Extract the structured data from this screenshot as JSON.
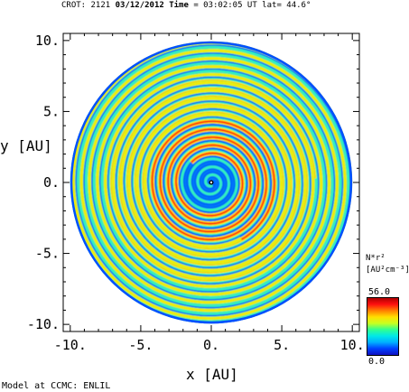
{
  "header": {
    "prefix": "CROT: 2121",
    "date": "03/12/2012",
    "time_label": "Time",
    "time_value": "= 03:02:05 UT lat= 44.6°"
  },
  "footer": "Model at CCMC: ENLIL",
  "colorbar": {
    "title_line1": "N*r²",
    "title_line2": "[AU²cm⁻³]",
    "max_label": "56.0",
    "min_label": "0.0",
    "colors": [
      "#1010c0",
      "#0040ff",
      "#00b0ff",
      "#00e8e8",
      "#30ff90",
      "#c8ff20",
      "#ffe000",
      "#ff8000",
      "#ff1010",
      "#b00000"
    ]
  },
  "chart_data": {
    "type": "heatmap",
    "title": "",
    "xlabel": "x [AU]",
    "ylabel": "y [AU]",
    "xlim": [
      -10.5,
      10.5
    ],
    "ylim": [
      -10.5,
      10.5
    ],
    "x_ticks": [
      -10,
      -5,
      0,
      5,
      10
    ],
    "x_tick_labels": [
      "-10.",
      "-5.",
      "0.",
      "5.",
      "10."
    ],
    "y_ticks": [
      10,
      5,
      0,
      -5,
      -10
    ],
    "y_tick_labels": [
      "10.",
      "5.",
      "0.",
      "-5.",
      "-10."
    ],
    "domain_radius_au": 10,
    "quantity": "N*r²",
    "value_range": [
      0.0,
      56.0
    ],
    "background_color": "#2020a8"
  }
}
